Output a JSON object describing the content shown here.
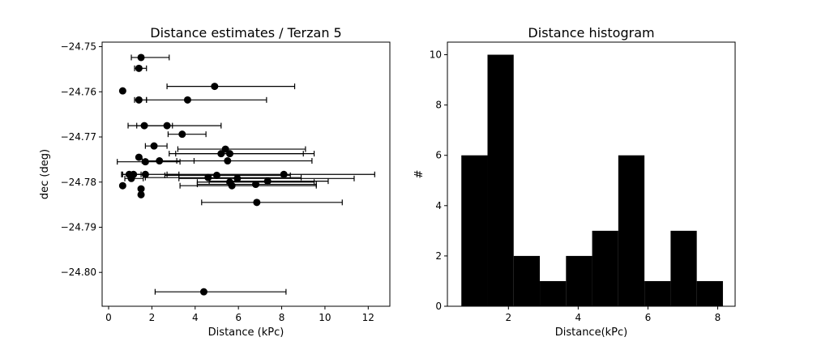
{
  "chart_data": [
    {
      "type": "scatter",
      "title": "Distance estimates / Terzan 5",
      "xlabel": "Distance (kPc)",
      "ylabel": "dec (deg)",
      "xlim": [
        -0.3,
        13.0
      ],
      "ylim": [
        -24.8075,
        -24.749
      ],
      "xticks": [
        0,
        2,
        4,
        6,
        8,
        10,
        12
      ],
      "xtick_labels": [
        "0",
        "2",
        "4",
        "6",
        "8",
        "10",
        "12"
      ],
      "yticks": [
        -24.75,
        -24.76,
        -24.77,
        -24.78,
        -24.79,
        -24.8
      ],
      "ytick_labels": [
        "−24.75",
        "−24.76",
        "−24.77",
        "−24.78",
        "−24.79",
        "−24.80"
      ],
      "grid": false,
      "points": [
        {
          "x": 1.5,
          "y": -24.7524,
          "xerr": [
            0.45,
            1.3
          ]
        },
        {
          "x": 1.4,
          "y": -24.7548,
          "xerr": [
            0.2,
            0.35
          ]
        },
        {
          "x": 4.9,
          "y": -24.7588,
          "xerr": [
            2.2,
            3.7
          ]
        },
        {
          "x": 0.65,
          "y": -24.7598,
          "xerr": [
            0,
            0
          ]
        },
        {
          "x": 1.4,
          "y": -24.7618,
          "xerr": [
            0.2,
            0.35
          ]
        },
        {
          "x": 3.65,
          "y": -24.7618,
          "xerr": [
            1.9,
            3.65
          ]
        },
        {
          "x": 1.65,
          "y": -24.7675,
          "xerr": [
            0.75,
            1.3
          ]
        },
        {
          "x": 2.7,
          "y": -24.7675,
          "xerr": [
            1.4,
            2.5
          ]
        },
        {
          "x": 3.4,
          "y": -24.7694,
          "xerr": [
            0.65,
            1.1
          ]
        },
        {
          "x": 2.1,
          "y": -24.772,
          "xerr": [
            0.4,
            0.6
          ]
        },
        {
          "x": 5.4,
          "y": -24.7727,
          "xerr": [
            2.2,
            3.7
          ]
        },
        {
          "x": 5.2,
          "y": -24.7737,
          "xerr": [
            2.1,
            3.8
          ]
        },
        {
          "x": 5.6,
          "y": -24.7737,
          "xerr": [
            2.8,
            3.9
          ]
        },
        {
          "x": 1.4,
          "y": -24.7745,
          "xerr": [
            0,
            0
          ]
        },
        {
          "x": 1.7,
          "y": -24.7755,
          "xerr": [
            1.3,
            1.6
          ]
        },
        {
          "x": 2.35,
          "y": -24.7753,
          "xerr": [
            0.8,
            1.6
          ]
        },
        {
          "x": 5.5,
          "y": -24.7753,
          "xerr": [
            2.35,
            3.9
          ]
        },
        {
          "x": 0.95,
          "y": -24.7783,
          "xerr": [
            0.35,
            0.55
          ]
        },
        {
          "x": 1.15,
          "y": -24.7783,
          "xerr": [
            0.5,
            0.6
          ]
        },
        {
          "x": 1.7,
          "y": -24.7783,
          "xerr": [
            1.1,
            1.55
          ]
        },
        {
          "x": 8.1,
          "y": -24.7783,
          "xerr": [
            5.4,
            4.2
          ]
        },
        {
          "x": 5.0,
          "y": -24.7785,
          "xerr": [
            2.4,
            3.4
          ]
        },
        {
          "x": 4.6,
          "y": -24.779,
          "xerr": [
            2.9,
            4.3
          ]
        },
        {
          "x": 1.05,
          "y": -24.7792,
          "xerr": [
            0.3,
            0.55
          ]
        },
        {
          "x": 5.95,
          "y": -24.7792,
          "xerr": [
            2.7,
            5.4
          ]
        },
        {
          "x": 7.35,
          "y": -24.7798,
          "xerr": [
            2.7,
            2.8
          ]
        },
        {
          "x": 5.6,
          "y": -24.78,
          "xerr": [
            1.5,
            3.9
          ]
        },
        {
          "x": 6.8,
          "y": -24.7805,
          "xerr": [
            2.7,
            2.8
          ]
        },
        {
          "x": 5.7,
          "y": -24.7808,
          "xerr": [
            2.4,
            3.9
          ]
        },
        {
          "x": 0.65,
          "y": -24.7808,
          "xerr": [
            0,
            0
          ]
        },
        {
          "x": 1.5,
          "y": -24.7815,
          "xerr": [
            0,
            0
          ]
        },
        {
          "x": 1.5,
          "y": -24.7828,
          "xerr": [
            0,
            0
          ]
        },
        {
          "x": 6.85,
          "y": -24.7845,
          "xerr": [
            2.55,
            3.95
          ]
        },
        {
          "x": 4.4,
          "y": -24.8043,
          "xerr": [
            2.25,
            3.8
          ]
        }
      ]
    },
    {
      "type": "bar",
      "title": "Distance histogram",
      "xlabel": "Distance(kPc)",
      "ylabel": "#",
      "xlim": [
        0.25,
        8.5
      ],
      "ylim": [
        0,
        10.5
      ],
      "xticks": [
        2,
        4,
        6,
        8
      ],
      "xtick_labels": [
        "2",
        "4",
        "6",
        "8"
      ],
      "yticks": [
        0,
        2,
        4,
        6,
        8,
        10
      ],
      "ytick_labels": [
        "0",
        "2",
        "4",
        "6",
        "8",
        "10"
      ],
      "grid": false,
      "bin_edges": [
        0.65,
        1.4,
        2.15,
        2.9,
        3.65,
        4.4,
        5.15,
        5.9,
        6.65,
        7.4,
        8.15
      ],
      "values": [
        6,
        10,
        2,
        1,
        2,
        3,
        6,
        1,
        3,
        1
      ]
    }
  ]
}
